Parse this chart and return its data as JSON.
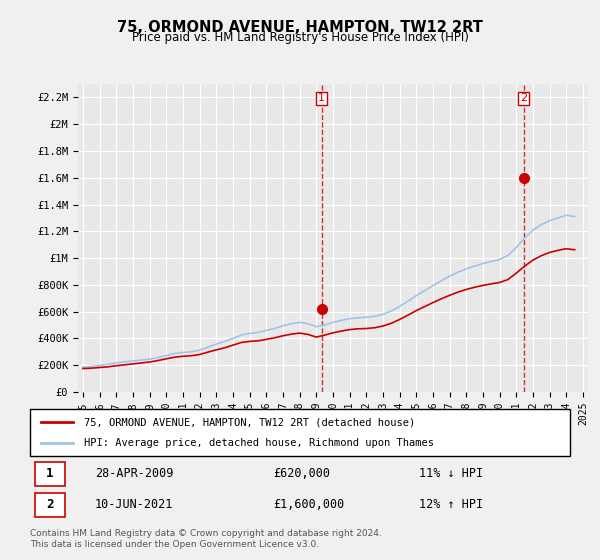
{
  "title": "75, ORMOND AVENUE, HAMPTON, TW12 2RT",
  "subtitle": "Price paid vs. HM Land Registry's House Price Index (HPI)",
  "legend_line1": "75, ORMOND AVENUE, HAMPTON, TW12 2RT (detached house)",
  "legend_line2": "HPI: Average price, detached house, Richmond upon Thames",
  "table_row1_num": "1",
  "table_row1_date": "28-APR-2009",
  "table_row1_price": "£620,000",
  "table_row1_hpi": "11% ↓ HPI",
  "table_row2_num": "2",
  "table_row2_date": "10-JUN-2021",
  "table_row2_price": "£1,600,000",
  "table_row2_hpi": "12% ↑ HPI",
  "footnote": "Contains HM Land Registry data © Crown copyright and database right 2024.\nThis data is licensed under the Open Government Licence v3.0.",
  "hpi_color": "#a0c4e8",
  "price_color": "#cc0000",
  "marker_color": "#cc0000",
  "vline_color": "#cc0000",
  "ylim": [
    0,
    2300000
  ],
  "yticks": [
    0,
    200000,
    400000,
    600000,
    800000,
    1000000,
    1200000,
    1400000,
    1600000,
    1800000,
    2000000,
    2200000
  ],
  "ytick_labels": [
    "£0",
    "£200K",
    "£400K",
    "£600K",
    "£800K",
    "£1M",
    "£1.2M",
    "£1.4M",
    "£1.6M",
    "£1.8M",
    "£2M",
    "£2.2M"
  ],
  "marker1_x": 2009.32,
  "marker1_y": 620000,
  "marker2_x": 2021.44,
  "marker2_y": 1600000,
  "vline1_x": 2009.32,
  "vline2_x": 2021.44,
  "hpi_years": [
    1995,
    1995.5,
    1996,
    1996.5,
    1997,
    1997.5,
    1998,
    1998.5,
    1999,
    1999.5,
    2000,
    2000.5,
    2001,
    2001.5,
    2002,
    2002.5,
    2003,
    2003.5,
    2004,
    2004.5,
    2005,
    2005.5,
    2006,
    2006.5,
    2007,
    2007.5,
    2008,
    2008.5,
    2009,
    2009.5,
    2010,
    2010.5,
    2011,
    2011.5,
    2012,
    2012.5,
    2013,
    2013.5,
    2014,
    2014.5,
    2015,
    2015.5,
    2016,
    2016.5,
    2017,
    2017.5,
    2018,
    2018.5,
    2019,
    2019.5,
    2020,
    2020.5,
    2021,
    2021.5,
    2022,
    2022.5,
    2023,
    2023.5,
    2024,
    2024.5
  ],
  "hpi_values": [
    185000,
    190000,
    198000,
    207000,
    218000,
    225000,
    232000,
    238000,
    245000,
    258000,
    272000,
    288000,
    295000,
    300000,
    312000,
    335000,
    358000,
    378000,
    400000,
    425000,
    438000,
    445000,
    460000,
    475000,
    495000,
    510000,
    520000,
    510000,
    488000,
    500000,
    520000,
    535000,
    548000,
    555000,
    558000,
    565000,
    580000,
    605000,
    640000,
    678000,
    720000,
    758000,
    795000,
    830000,
    865000,
    895000,
    920000,
    940000,
    960000,
    975000,
    990000,
    1020000,
    1080000,
    1150000,
    1210000,
    1250000,
    1280000,
    1300000,
    1320000,
    1310000
  ],
  "price_years": [
    1995,
    1995.5,
    1996,
    1996.5,
    1997,
    1997.5,
    1998,
    1998.5,
    1999,
    1999.5,
    2000,
    2000.5,
    2001,
    2001.5,
    2002,
    2002.5,
    2003,
    2003.5,
    2004,
    2004.5,
    2005,
    2005.5,
    2006,
    2006.5,
    2007,
    2007.5,
    2008,
    2008.5,
    2009,
    2009.5,
    2010,
    2010.5,
    2011,
    2011.5,
    2012,
    2012.5,
    2013,
    2013.5,
    2014,
    2014.5,
    2015,
    2015.5,
    2016,
    2016.5,
    2017,
    2017.5,
    2018,
    2018.5,
    2019,
    2019.5,
    2020,
    2020.5,
    2021,
    2021.5,
    2022,
    2022.5,
    2023,
    2023.5,
    2024,
    2024.5
  ],
  "price_values": [
    175000,
    178000,
    183000,
    188000,
    196000,
    203000,
    210000,
    217000,
    224000,
    235000,
    248000,
    260000,
    267000,
    271000,
    280000,
    298000,
    315000,
    330000,
    350000,
    370000,
    378000,
    382000,
    393000,
    405000,
    420000,
    432000,
    440000,
    430000,
    410000,
    425000,
    442000,
    455000,
    466000,
    472000,
    474000,
    480000,
    493000,
    513000,
    542000,
    574000,
    608000,
    638000,
    668000,
    696000,
    722000,
    746000,
    766000,
    782000,
    796000,
    808000,
    818000,
    840000,
    888000,
    940000,
    985000,
    1018000,
    1042000,
    1058000,
    1070000,
    1062000
  ],
  "xtick_years": [
    1995,
    1996,
    1997,
    1998,
    1999,
    2000,
    2001,
    2002,
    2003,
    2004,
    2005,
    2006,
    2007,
    2008,
    2009,
    2010,
    2011,
    2012,
    2013,
    2014,
    2015,
    2016,
    2017,
    2018,
    2019,
    2020,
    2021,
    2022,
    2023,
    2024,
    2025
  ],
  "bg_color": "#f5f5f5",
  "grid_color": "#ffffff",
  "plot_bg": "#e8e8e8"
}
